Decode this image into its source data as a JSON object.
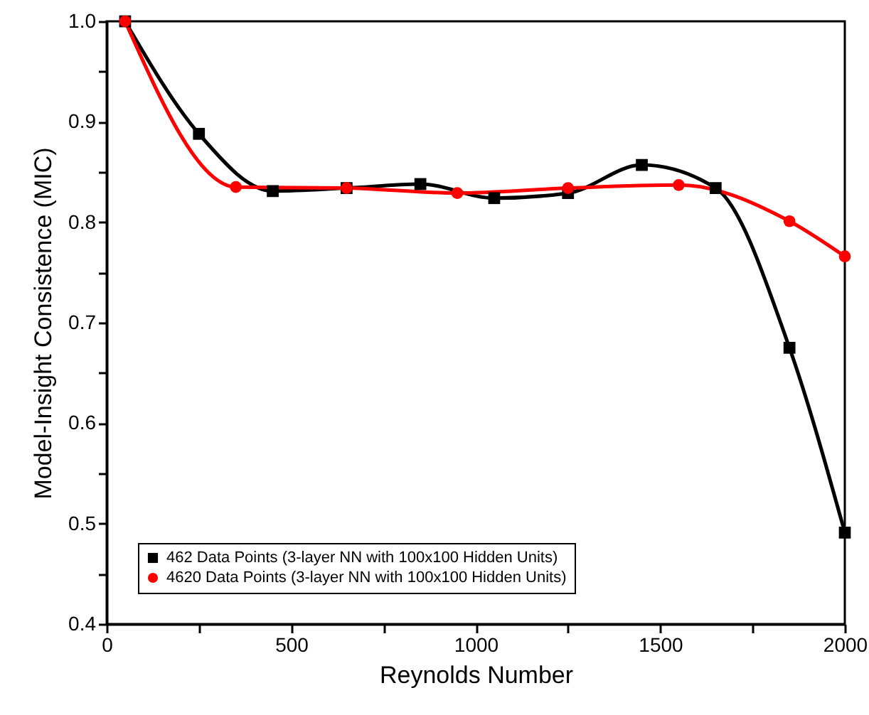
{
  "chart_data": {
    "type": "line",
    "xlabel": "Reynolds Number",
    "ylabel": "Model-Insight Consistence (MIC)",
    "xlim": [
      0,
      2000
    ],
    "ylim": [
      0.4,
      1.0
    ],
    "xticks": [
      0,
      {
        "value": 250,
        "label": null
      },
      500,
      {
        "value": 750,
        "label": null
      },
      1000,
      {
        "value": 1250,
        "label": null
      },
      1500,
      {
        "value": 1750,
        "label": null
      },
      2000
    ],
    "yticks": [
      0.4,
      {
        "value": 0.45,
        "label": null
      },
      0.5,
      {
        "value": 0.55,
        "label": null
      },
      0.6,
      {
        "value": 0.65,
        "label": null
      },
      0.7,
      {
        "value": 0.75,
        "label": null
      },
      0.8,
      {
        "value": 0.85,
        "label": null
      },
      0.9,
      {
        "value": 0.95,
        "label": null
      },
      {
        "value": 1.0,
        "label": "1.0"
      }
    ],
    "legend": "bottom left",
    "line_style": "solid",
    "series": [
      {
        "name": "462 Data Points (3-layer NN with 100x100 Hidden Units)",
        "color": "#000000",
        "marker": "square",
        "x": [
          50,
          250,
          450,
          650,
          850,
          1050,
          1250,
          1450,
          1650,
          1850,
          2000
        ],
        "values": [
          1.0,
          0.888,
          0.831,
          0.834,
          0.838,
          0.824,
          0.829,
          0.857,
          0.834,
          0.675,
          0.491
        ]
      },
      {
        "name": "4620 Data Points (3-layer NN with 100x100 Hidden Units)",
        "color": "#ff0000",
        "marker": "circle",
        "x": [
          50,
          350,
          650,
          950,
          1250,
          1550,
          1850,
          2000
        ],
        "values": [
          1.0,
          0.835,
          0.834,
          0.829,
          0.834,
          0.837,
          0.801,
          0.766
        ]
      }
    ]
  }
}
